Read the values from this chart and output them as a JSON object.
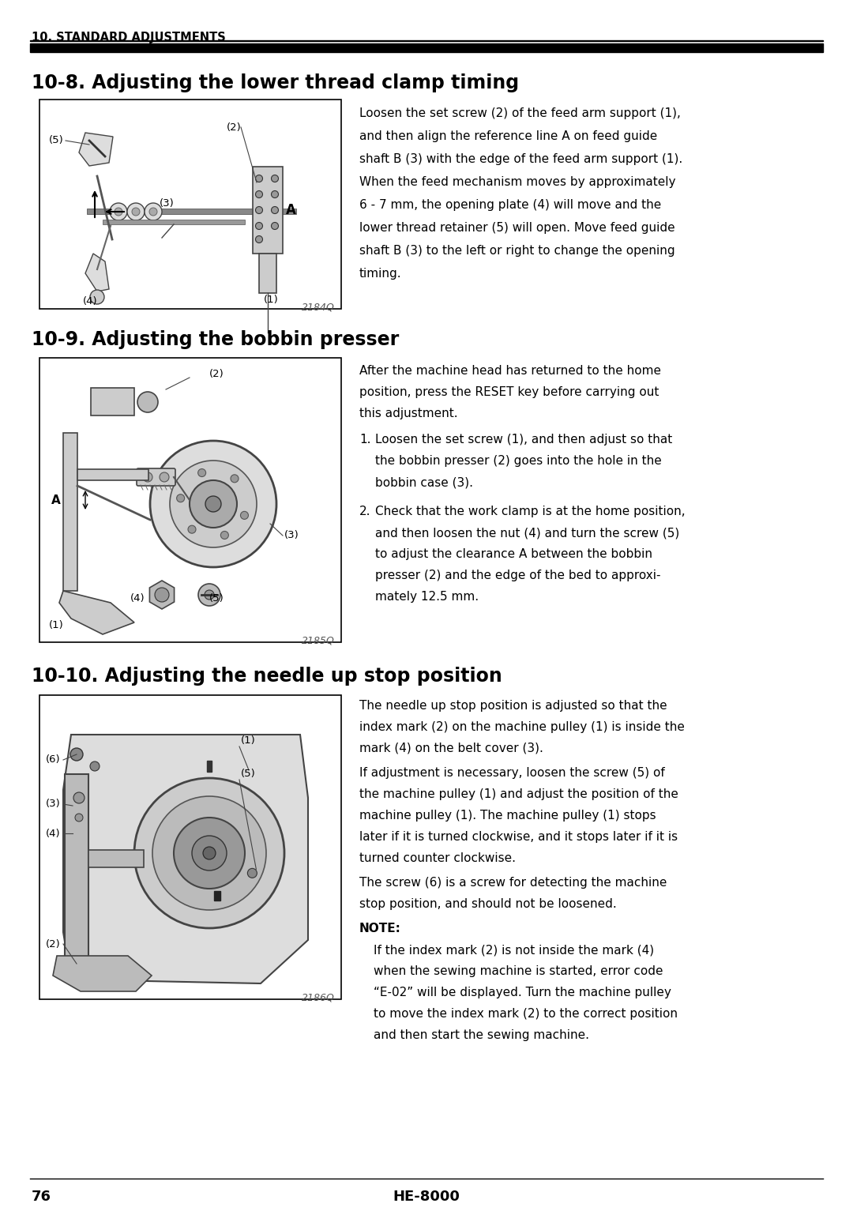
{
  "page_num": "76",
  "model": "HE-8000",
  "header_text": "10. STANDARD ADJUSTMENTS",
  "bg_color": "#ffffff",
  "section1_title": "10-8. Adjusting the lower thread clamp timing",
  "section1_text_lines": [
    "Loosen the set screw (2) of the feed arm support (1),",
    "and then align the reference line A on feed guide",
    "shaft B (3) with the edge of the feed arm support (1).",
    "When the feed mechanism moves by approximately",
    "6 - 7 mm, the opening plate (4) will move and the",
    "lower thread retainer (5) will open. Move feed guide",
    "shaft B (3) to the left or right to change the opening",
    "timing."
  ],
  "section1_fig_num": "2184Q",
  "section2_title": "10-9. Adjusting the bobbin presser",
  "section2_intro_lines": [
    "After the machine head has returned to the home",
    "position, press the RESET key before carrying out",
    "this adjustment."
  ],
  "section2_item1_lines": [
    "Loosen the set screw (1), and then adjust so that",
    "the bobbin presser (2) goes into the hole in the",
    "bobbin case (3)."
  ],
  "section2_item2_lines": [
    "Check that the work clamp is at the home position,",
    "and then loosen the nut (4) and turn the screw (5)",
    "to adjust the clearance A between the bobbin",
    "presser (2) and the edge of the bed to approxi-",
    "mately 12.5 mm."
  ],
  "section2_fig_num": "2185Q",
  "section3_title": "10-10. Adjusting the needle up stop position",
  "section3_p1_lines": [
    "The needle up stop position is adjusted so that the",
    "index mark (2) on the machine pulley (1) is inside the",
    "mark (4) on the belt cover (3)."
  ],
  "section3_p2_lines": [
    "If adjustment is necessary, loosen the screw (5) of",
    "the machine pulley (1) and adjust the position of the",
    "machine pulley (1). The machine pulley (1) stops",
    "later if it is turned clockwise, and it stops later if it is",
    "turned counter clockwise."
  ],
  "section3_p3_lines": [
    "The screw (6) is a screw for detecting the machine",
    "stop position, and should not be loosened."
  ],
  "section3_note_label": "NOTE:",
  "section3_note_lines": [
    "If the index mark (2) is not inside the mark (4)",
    "when the sewing machine is started, error code",
    "“E-02” will be displayed. Turn the machine pulley",
    "to move the index mark (2) to the correct position",
    "and then start the sewing machine."
  ],
  "section3_fig_num": "2186Q"
}
